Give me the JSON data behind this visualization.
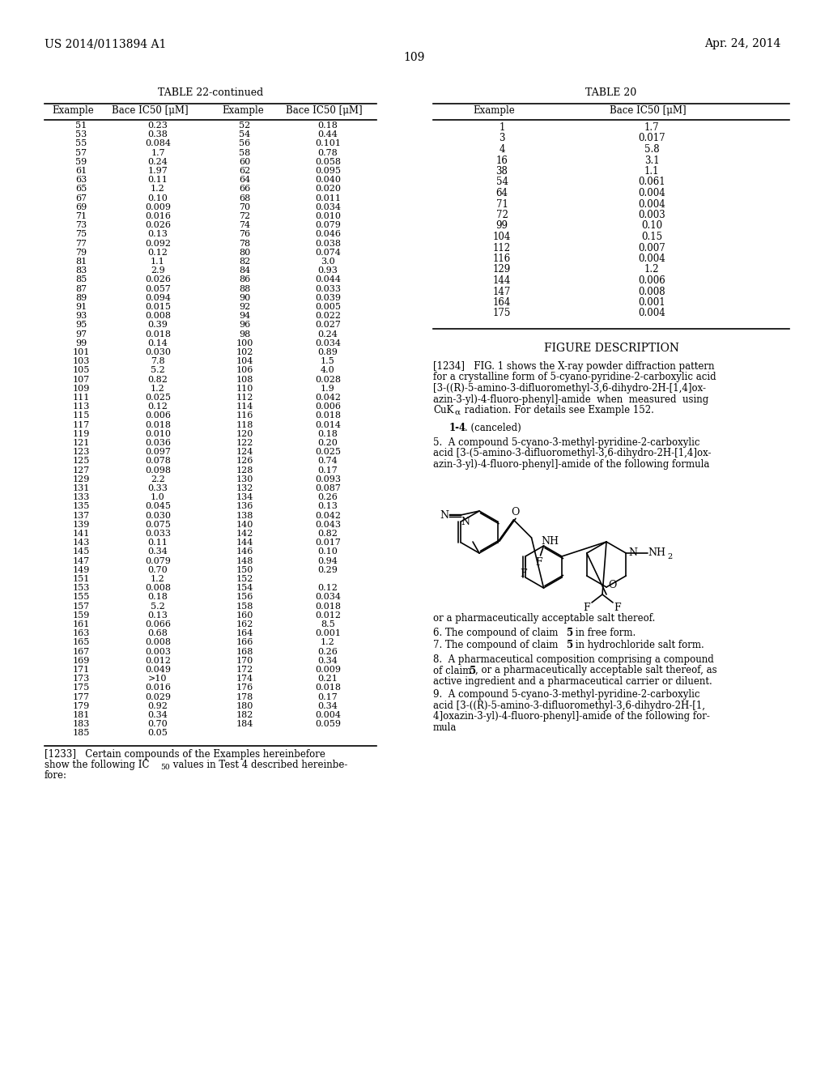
{
  "patent_number": "US 2014/0113894 A1",
  "date": "Apr. 24, 2014",
  "page_number": "109",
  "table22_title": "TABLE 22-continued",
  "table22_headers": [
    "Example",
    "Bace IC50 [μM]",
    "Example",
    "Bace IC50 [μM]"
  ],
  "table22_data": [
    [
      51,
      "0.23",
      52,
      "0.18"
    ],
    [
      53,
      "0.38",
      54,
      "0.44"
    ],
    [
      55,
      "0.084",
      56,
      "0.101"
    ],
    [
      57,
      "1.7",
      58,
      "0.78"
    ],
    [
      59,
      "0.24",
      60,
      "0.058"
    ],
    [
      61,
      "1.97",
      62,
      "0.095"
    ],
    [
      63,
      "0.11",
      64,
      "0.040"
    ],
    [
      65,
      "1.2",
      66,
      "0.020"
    ],
    [
      67,
      "0.10",
      68,
      "0.011"
    ],
    [
      69,
      "0.009",
      70,
      "0.034"
    ],
    [
      71,
      "0.016",
      72,
      "0.010"
    ],
    [
      73,
      "0.026",
      74,
      "0.079"
    ],
    [
      75,
      "0.13",
      76,
      "0.046"
    ],
    [
      77,
      "0.092",
      78,
      "0.038"
    ],
    [
      79,
      "0.12",
      80,
      "0.074"
    ],
    [
      81,
      "1.1",
      82,
      "3.0"
    ],
    [
      83,
      "2.9",
      84,
      "0.93"
    ],
    [
      85,
      "0.026",
      86,
      "0.044"
    ],
    [
      87,
      "0.057",
      88,
      "0.033"
    ],
    [
      89,
      "0.094",
      90,
      "0.039"
    ],
    [
      91,
      "0.015",
      92,
      "0.005"
    ],
    [
      93,
      "0.008",
      94,
      "0.022"
    ],
    [
      95,
      "0.39",
      96,
      "0.027"
    ],
    [
      97,
      "0.018",
      98,
      "0.24"
    ],
    [
      99,
      "0.14",
      100,
      "0.034"
    ],
    [
      101,
      "0.030",
      102,
      "0.89"
    ],
    [
      103,
      "7.8",
      104,
      "1.5"
    ],
    [
      105,
      "5.2",
      106,
      "4.0"
    ],
    [
      107,
      "0.82",
      108,
      "0.028"
    ],
    [
      109,
      "1.2",
      110,
      "1.9"
    ],
    [
      111,
      "0.025",
      112,
      "0.042"
    ],
    [
      113,
      "0.12",
      114,
      "0.006"
    ],
    [
      115,
      "0.006",
      116,
      "0.018"
    ],
    [
      117,
      "0.018",
      118,
      "0.014"
    ],
    [
      119,
      "0.010",
      120,
      "0.18"
    ],
    [
      121,
      "0.036",
      122,
      "0.20"
    ],
    [
      123,
      "0.097",
      124,
      "0.025"
    ],
    [
      125,
      "0.078",
      126,
      "0.74"
    ],
    [
      127,
      "0.098",
      128,
      "0.17"
    ],
    [
      129,
      "2.2",
      130,
      "0.093"
    ],
    [
      131,
      "0.33",
      132,
      "0.087"
    ],
    [
      133,
      "1.0",
      134,
      "0.26"
    ],
    [
      135,
      "0.045",
      136,
      "0.13"
    ],
    [
      137,
      "0.030",
      138,
      "0.042"
    ],
    [
      139,
      "0.075",
      140,
      "0.043"
    ],
    [
      141,
      "0.033",
      142,
      "0.82"
    ],
    [
      143,
      "0.11",
      144,
      "0.017"
    ],
    [
      145,
      "0.34",
      146,
      "0.10"
    ],
    [
      147,
      "0.079",
      148,
      "0.94"
    ],
    [
      149,
      "0.70",
      150,
      "0.29"
    ],
    [
      151,
      "1.2",
      152,
      ""
    ],
    [
      153,
      "0.008",
      154,
      "0.12"
    ],
    [
      155,
      "0.18",
      156,
      "0.034"
    ],
    [
      157,
      "5.2",
      158,
      "0.018"
    ],
    [
      159,
      "0.13",
      160,
      "0.012"
    ],
    [
      161,
      "0.066",
      162,
      "8.5"
    ],
    [
      163,
      "0.68",
      164,
      "0.001"
    ],
    [
      165,
      "0.008",
      166,
      "1.2"
    ],
    [
      167,
      "0.003",
      168,
      "0.26"
    ],
    [
      169,
      "0.012",
      170,
      "0.34"
    ],
    [
      171,
      "0.049",
      172,
      "0.009"
    ],
    [
      173,
      ">10",
      174,
      "0.21"
    ],
    [
      175,
      "0.016",
      176,
      "0.018"
    ],
    [
      177,
      "0.029",
      178,
      "0.17"
    ],
    [
      179,
      "0.92",
      180,
      "0.34"
    ],
    [
      181,
      "0.34",
      182,
      "0.004"
    ],
    [
      183,
      "0.70",
      184,
      "0.059"
    ],
    [
      185,
      "0.05",
      "",
      ""
    ]
  ],
  "table20_title": "TABLE 20",
  "table20_headers": [
    "Example",
    "Bace IC50 [μM]"
  ],
  "table20_data": [
    [
      1,
      "1.7"
    ],
    [
      3,
      "0.017"
    ],
    [
      4,
      "5.8"
    ],
    [
      16,
      "3.1"
    ],
    [
      38,
      "1.1"
    ],
    [
      54,
      "0.061"
    ],
    [
      64,
      "0.004"
    ],
    [
      71,
      "0.004"
    ],
    [
      72,
      "0.003"
    ],
    [
      99,
      "0.10"
    ],
    [
      104,
      "0.15"
    ],
    [
      112,
      "0.007"
    ],
    [
      116,
      "0.004"
    ],
    [
      129,
      "1.2"
    ],
    [
      144,
      "0.006"
    ],
    [
      147,
      "0.008"
    ],
    [
      164,
      "0.001"
    ],
    [
      175,
      "0.004"
    ]
  ]
}
